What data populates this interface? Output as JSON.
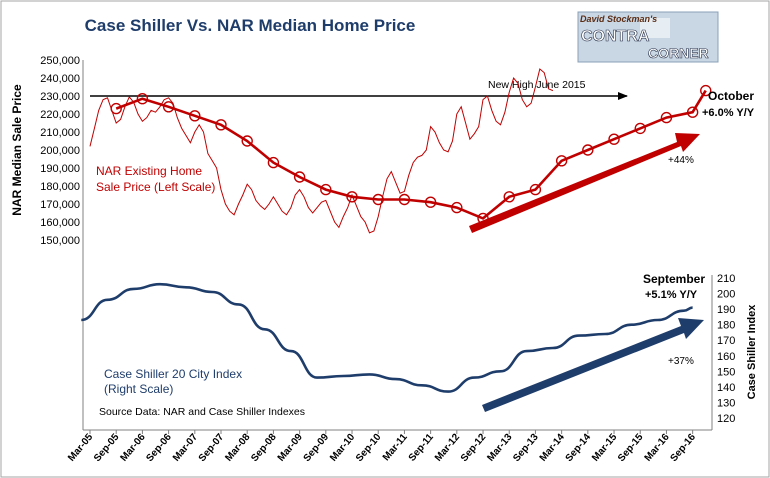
{
  "chart_data": {
    "type": "line",
    "title": "Case Shiller Vs. NAR Median Home Price",
    "logo": {
      "line1": "David Stockman's",
      "line2": "CONTRA",
      "line3": "CORNER"
    },
    "left_axis": {
      "label": "NAR Median Sale Price",
      "ticks": [
        "150,000",
        "160,000",
        "170,000",
        "180,000",
        "190,000",
        "200,000",
        "210,000",
        "220,000",
        "230,000",
        "240,000",
        "250,000"
      ],
      "ylim": [
        150000,
        250000
      ]
    },
    "right_axis": {
      "label": "Case Shiller Index",
      "ticks": [
        "120",
        "130",
        "140",
        "150",
        "160",
        "170",
        "180",
        "190",
        "200",
        "210"
      ],
      "ylim": [
        120,
        210
      ]
    },
    "x_ticks": [
      "Mar-05",
      "Sep-05",
      "Mar-06",
      "Sep-06",
      "Mar-07",
      "Sep-07",
      "Mar-08",
      "Sep-08",
      "Mar-09",
      "Sep-09",
      "Mar-10",
      "Sep-10",
      "Mar-11",
      "Sep-11",
      "Mar-12",
      "Sep-12",
      "Mar-13",
      "Sep-13",
      "Mar-14",
      "Sep-14",
      "Mar-15",
      "Sep-15",
      "Mar-16",
      "Sep-16"
    ],
    "series": [
      {
        "name": "NAR Existing Home Sale Price (Left Scale)",
        "color": "#c00000",
        "monthly": [
          202000,
          212000,
          222000,
          228000,
          229000,
          222000,
          215000,
          217000,
          224000,
          229500,
          226500,
          220000,
          216000,
          218000,
          222000,
          221000,
          224000,
          228000,
          229000,
          226000,
          218000,
          212000,
          208000,
          204000,
          210000,
          214000,
          210000,
          198000,
          194000,
          190000,
          178000,
          170000,
          166000,
          164000,
          170000,
          175000,
          181000,
          178000,
          172000,
          169000,
          167000,
          170000,
          174000,
          170000,
          166000,
          164000,
          168000,
          175000,
          178000,
          174000,
          168000,
          165000,
          168000,
          171000,
          172000,
          166000,
          160000,
          157000,
          163000,
          168000,
          175000,
          169000,
          163000,
          160000,
          154000,
          155000,
          163000,
          174000,
          184000,
          188000,
          182000,
          176000,
          177000,
          186000,
          193000,
          196000,
          197000,
          200000,
          213000,
          210000,
          204000,
          200000,
          199000,
          205000,
          220000,
          224000,
          215000,
          206000,
          209000,
          213000,
          228000,
          230000,
          222000,
          216000,
          214000,
          221000,
          232000,
          240000,
          237000,
          228000,
          224000,
          226000,
          235000,
          245000,
          243000,
          234000,
          233000
        ],
        "trend_x": [
          "Sep-05",
          "Mar-06",
          "Sep-06",
          "Mar-07",
          "Sep-07",
          "Mar-08",
          "Sep-08",
          "Mar-09",
          "Sep-09",
          "Mar-10",
          "Sep-10",
          "Mar-11",
          "Sep-11",
          "Mar-12",
          "Sep-12",
          "Mar-13",
          "Sep-13",
          "Mar-14",
          "Sep-14",
          "Mar-15",
          "Sep-15",
          "Mar-16",
          "Sep-16",
          "Dec-16"
        ],
        "trend_y": [
          223000,
          228500,
          224000,
          219000,
          214000,
          205000,
          193000,
          185000,
          178000,
          174000,
          172500,
          172500,
          171000,
          168000,
          162000,
          174000,
          178000,
          194000,
          200000,
          206000,
          212000,
          218000,
          221000,
          233000
        ]
      },
      {
        "name": "Case Shiller 20 City Index (Right Scale)",
        "color": "#1f3d6b",
        "x": [
          "Jan-05",
          "Jul-05",
          "Jan-06",
          "Jul-06",
          "Jan-07",
          "Jul-07",
          "Jan-08",
          "Jul-08",
          "Jan-09",
          "Jul-09",
          "Jan-10",
          "Jul-10",
          "Jan-11",
          "Jul-11",
          "Jan-12",
          "Jul-12",
          "Jan-13",
          "Jul-13",
          "Jan-14",
          "Jul-14",
          "Jan-15",
          "Jul-15",
          "Jan-16",
          "Jul-16",
          "Sep-16"
        ],
        "values": [
          183,
          196,
          203,
          206,
          204,
          201,
          193,
          177,
          163,
          146,
          147,
          148,
          145,
          141,
          137,
          146,
          150,
          163,
          165,
          173,
          174,
          180,
          183,
          189,
          191
        ]
      }
    ],
    "annotations": {
      "new_high": "New High June 2015",
      "october_title": "October",
      "october_yoy": "+6.0% Y/Y",
      "nar_gain": "+44%",
      "nar_label1": "NAR Existing Home",
      "nar_label2": "Sale Price (Left Scale)",
      "september_title": "September",
      "september_yoy": "+5.1% Y/Y",
      "cs_gain": "+37%",
      "cs_label1": "Case Shiller 20 City Index",
      "cs_label2": "(Right Scale)",
      "source": "Source Data: NAR and Case Shiller Indexes"
    },
    "legend": "none",
    "grid": false
  }
}
